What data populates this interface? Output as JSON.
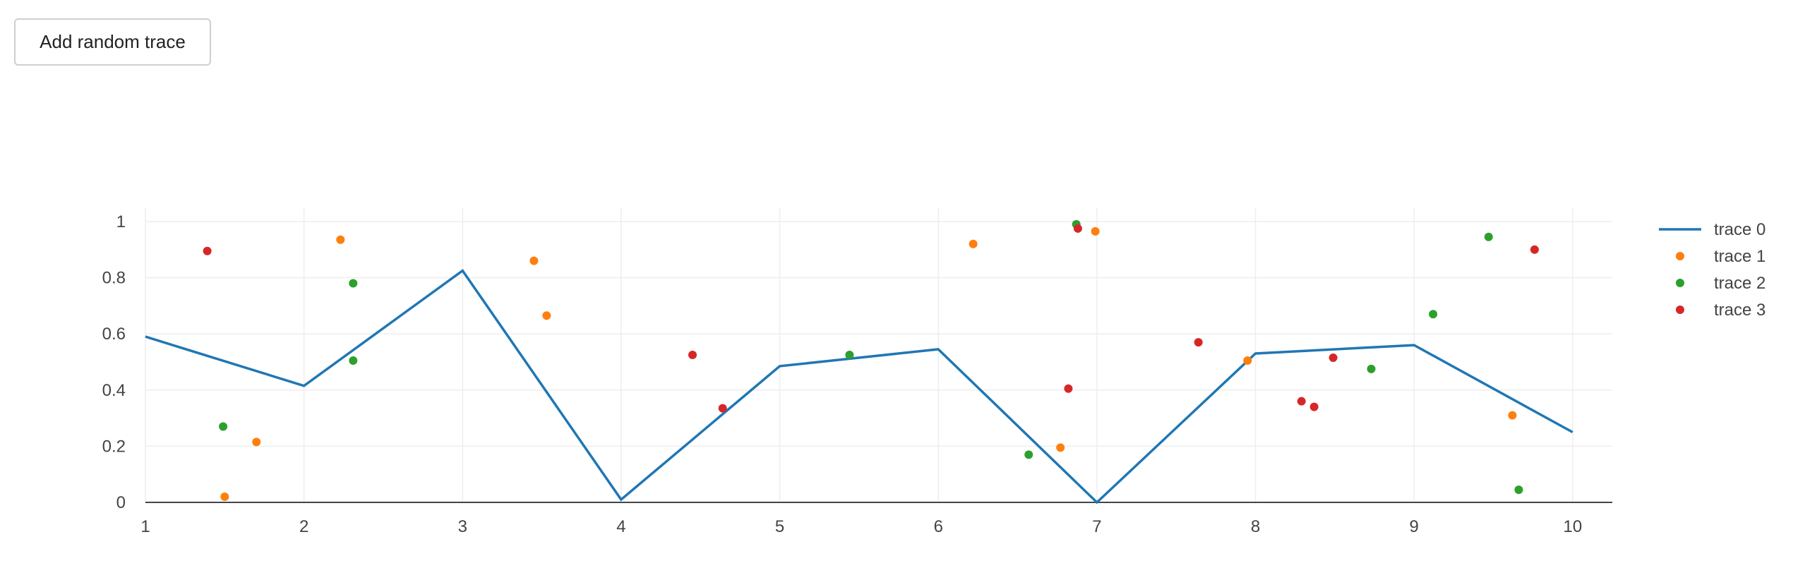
{
  "toolbar": {
    "add_trace_label": "Add random trace"
  },
  "colors": {
    "grid": "#eeeeee",
    "zero_line": "#444444",
    "tick_text": "#444444"
  },
  "chart_data": {
    "type": "scatter",
    "xlim": [
      1,
      10.25
    ],
    "ylim": [
      0,
      1.05
    ],
    "x_ticks": [
      1,
      2,
      3,
      4,
      5,
      6,
      7,
      8,
      9,
      10
    ],
    "y_ticks": [
      0,
      0.2,
      0.4,
      0.6,
      0.8,
      1
    ],
    "y_tick_labels": [
      "0",
      "0.2",
      "0.4",
      "0.6",
      "0.8",
      "1"
    ],
    "grid": true,
    "legend": "top-right",
    "series": [
      {
        "name": "trace 0",
        "mode": "lines",
        "color": "#1f77b4",
        "x": [
          1,
          2,
          3,
          4,
          5,
          6,
          7,
          8,
          9,
          10
        ],
        "y": [
          0.59,
          0.415,
          0.825,
          0.01,
          0.485,
          0.545,
          0.0,
          0.53,
          0.56,
          0.25
        ]
      },
      {
        "name": "trace 1",
        "mode": "markers",
        "color": "#ff7f0e",
        "x": [
          1.5,
          1.7,
          2.23,
          3.45,
          3.53,
          6.22,
          6.77,
          6.99,
          7.95,
          9.62
        ],
        "y": [
          0.02,
          0.215,
          0.935,
          0.86,
          0.665,
          0.92,
          0.195,
          0.965,
          0.505,
          0.31
        ]
      },
      {
        "name": "trace 2",
        "mode": "markers",
        "color": "#2ca02c",
        "x": [
          1.49,
          2.31,
          2.31,
          5.44,
          6.57,
          6.87,
          8.73,
          9.12,
          9.47,
          9.66
        ],
        "y": [
          0.27,
          0.78,
          0.505,
          0.525,
          0.17,
          0.99,
          0.475,
          0.67,
          0.945,
          0.045
        ]
      },
      {
        "name": "trace 3",
        "mode": "markers",
        "color": "#d62728",
        "x": [
          1.39,
          4.45,
          4.64,
          6.82,
          6.88,
          7.64,
          8.29,
          8.37,
          8.49,
          9.76
        ],
        "y": [
          0.895,
          0.525,
          0.335,
          0.405,
          0.975,
          0.57,
          0.36,
          0.34,
          0.515,
          0.9
        ]
      }
    ]
  }
}
